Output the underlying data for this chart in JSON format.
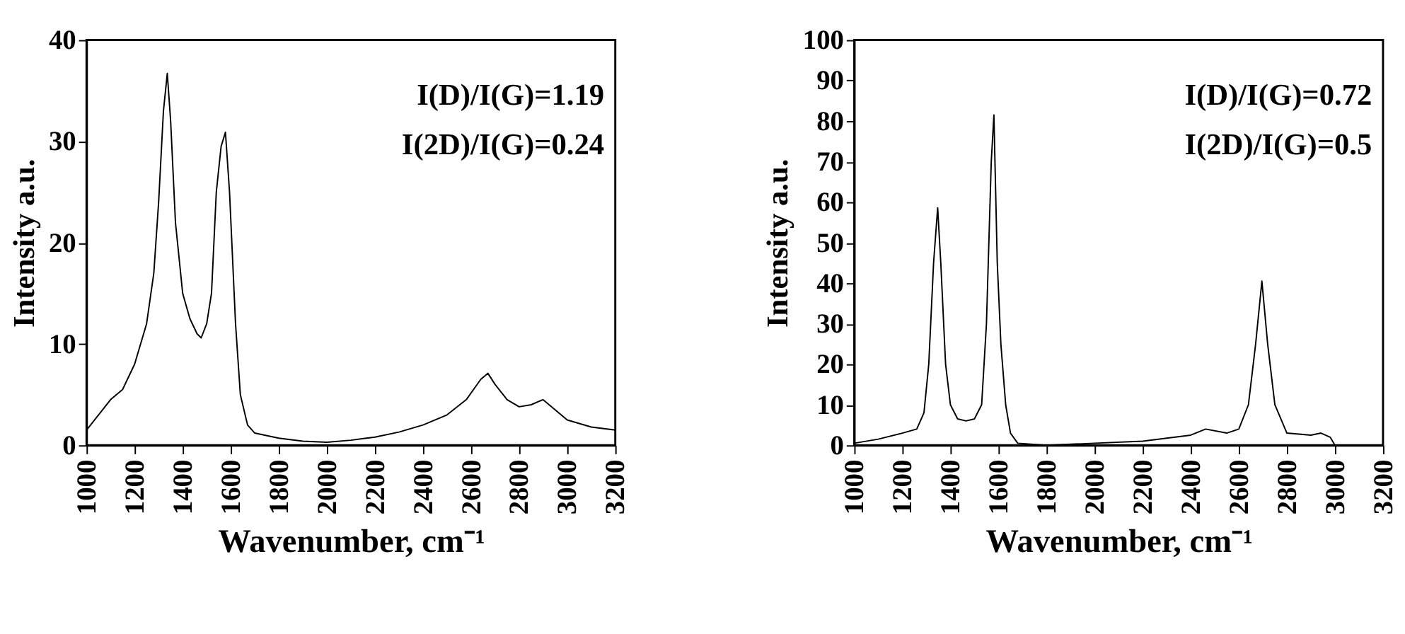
{
  "chart_data": [
    {
      "type": "line",
      "xlabel": "Wavenumber, cm⁻¹",
      "ylabel": "Intensity a.u.",
      "xlim": [
        1000,
        3200
      ],
      "xticks": [
        1000,
        1200,
        1400,
        1600,
        1800,
        2000,
        2200,
        2400,
        2600,
        2800,
        3000,
        3200
      ],
      "ylim": [
        0,
        40
      ],
      "yticks": [
        0,
        10,
        20,
        30,
        40
      ],
      "grid": false,
      "marker": "none",
      "line_style": "solid",
      "annotations": [
        "I(D)/I(G)=1.19",
        "I(2D)/I(G)=0.24"
      ],
      "series": [
        {
          "color": "#000000",
          "x": [
            1000,
            1050,
            1100,
            1150,
            1200,
            1250,
            1280,
            1300,
            1320,
            1336,
            1350,
            1370,
            1400,
            1430,
            1460,
            1477,
            1500,
            1520,
            1540,
            1560,
            1578,
            1595,
            1620,
            1640,
            1670,
            1700,
            1800,
            1900,
            2000,
            2100,
            2200,
            2300,
            2400,
            2500,
            2580,
            2640,
            2670,
            2700,
            2750,
            2800,
            2850,
            2899,
            2950,
            3000,
            3100,
            3200
          ],
          "values": [
            1.5,
            3,
            4.5,
            5.5,
            8,
            12,
            17,
            24,
            33,
            36.7,
            32,
            22,
            15,
            12.5,
            11,
            10.6,
            12,
            15,
            25,
            29.5,
            30.9,
            25,
            12,
            5,
            2,
            1.2,
            0.7,
            0.4,
            0.3,
            0.5,
            0.8,
            1.3,
            2,
            3,
            4.5,
            6.5,
            7.1,
            6,
            4.5,
            3.8,
            4,
            4.5,
            3.5,
            2.5,
            1.8,
            1.5
          ]
        }
      ]
    },
    {
      "type": "line",
      "xlabel": "Wavenumber, cm⁻¹",
      "ylabel": "Intensity a.u.",
      "xlim": [
        1000,
        3200
      ],
      "xticks": [
        1000,
        1200,
        1400,
        1600,
        1800,
        2000,
        2200,
        2400,
        2600,
        2800,
        3000,
        3200
      ],
      "ylim": [
        0,
        100
      ],
      "yticks": [
        0,
        10,
        20,
        30,
        40,
        50,
        60,
        70,
        80,
        90,
        100
      ],
      "grid": false,
      "marker": "none",
      "line_style": "solid",
      "annotations": [
        "I(D)/I(G)=0.72",
        "I(2D)/I(G)=0.5"
      ],
      "series": [
        {
          "color": "#000000",
          "x": [
            1000,
            1100,
            1200,
            1260,
            1290,
            1310,
            1330,
            1347,
            1360,
            1380,
            1400,
            1430,
            1465,
            1500,
            1530,
            1550,
            1570,
            1581,
            1595,
            1610,
            1630,
            1650,
            1680,
            1800,
            2000,
            2200,
            2400,
            2462,
            2550,
            2600,
            2640,
            2670,
            2696,
            2720,
            2750,
            2800,
            2900,
            2942,
            2980,
            3000,
            3200
          ],
          "values": [
            0.5,
            1.5,
            3,
            4,
            8,
            20,
            45,
            58.6,
            45,
            20,
            10,
            6.5,
            6,
            6.5,
            10,
            30,
            70,
            81.5,
            45,
            25,
            10,
            3,
            0.5,
            0,
            0.5,
            1,
            2.5,
            4,
            3,
            4,
            10,
            25,
            40.5,
            25,
            10,
            3,
            2.5,
            3,
            2,
            0,
            0
          ]
        }
      ]
    }
  ]
}
